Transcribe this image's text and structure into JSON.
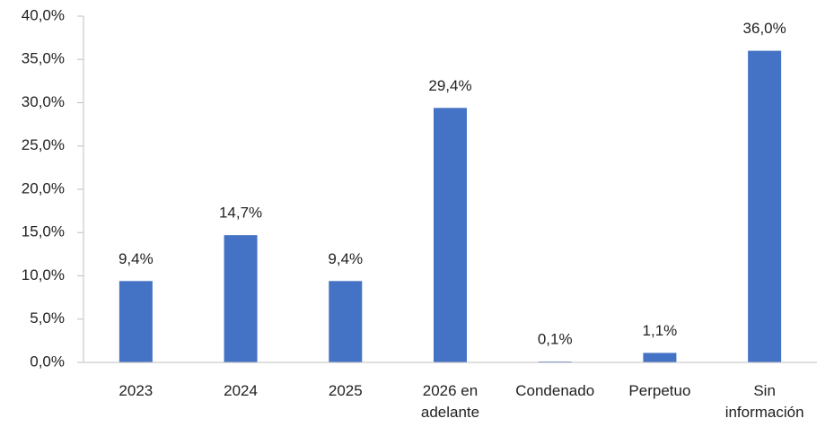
{
  "chart_data": {
    "type": "bar",
    "categories": [
      "2023",
      "2024",
      "2025",
      "2026 en adelante",
      "Condenado",
      "Perpetuo",
      "Sin información"
    ],
    "values": [
      9.4,
      14.7,
      9.4,
      29.4,
      0.1,
      1.1,
      36.0
    ],
    "value_labels": [
      "9,4%",
      "14,7%",
      "9,4%",
      "29,4%",
      "0,1%",
      "1,1%",
      "36,0%"
    ],
    "color": "#4472c4",
    "ylim": [
      0,
      40
    ],
    "yticks": [
      {
        "value": 0,
        "label": "0,0%"
      },
      {
        "value": 5,
        "label": "5,0%"
      },
      {
        "value": 10,
        "label": "10,0%"
      },
      {
        "value": 15,
        "label": "15,0%"
      },
      {
        "value": 20,
        "label": "20,0%"
      },
      {
        "value": 25,
        "label": "25,0%"
      },
      {
        "value": 30,
        "label": "30,0%"
      },
      {
        "value": 35,
        "label": "35,0%"
      },
      {
        "value": 40,
        "label": "40,0%"
      }
    ],
    "grid": false
  }
}
